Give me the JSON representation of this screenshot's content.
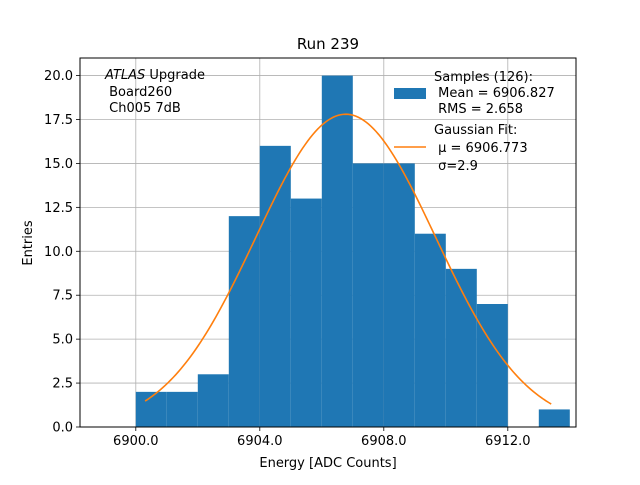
{
  "chart_data": {
    "type": "bar",
    "title": "Run 239",
    "xlabel": "Energy [ADC Counts]",
    "ylabel": "Entries",
    "xlim": [
      6898.2,
      6914.2
    ],
    "ylim": [
      0,
      21.0
    ],
    "grid": true,
    "x_ticks": [
      6900.0,
      6904.0,
      6908.0,
      6912.0
    ],
    "x_tick_labels": [
      "6900.0",
      "6904.0",
      "6908.0",
      "6912.0"
    ],
    "y_ticks": [
      0.0,
      2.5,
      5.0,
      7.5,
      10.0,
      12.5,
      15.0,
      17.5,
      20.0
    ],
    "y_tick_labels": [
      "0.0",
      "2.5",
      "5.0",
      "7.5",
      "10.0",
      "12.5",
      "15.0",
      "17.5",
      "20.0"
    ],
    "bin_width": 1,
    "histogram": {
      "name": "Samples (126):",
      "color": "#1f77b4",
      "bins": [
        {
          "x0": 6900,
          "count": 2
        },
        {
          "x0": 6901,
          "count": 2
        },
        {
          "x0": 6902,
          "count": 3
        },
        {
          "x0": 6903,
          "count": 12
        },
        {
          "x0": 6904,
          "count": 16
        },
        {
          "x0": 6905,
          "count": 13
        },
        {
          "x0": 6906,
          "count": 20
        },
        {
          "x0": 6907,
          "count": 15
        },
        {
          "x0": 6908,
          "count": 15
        },
        {
          "x0": 6909,
          "count": 11
        },
        {
          "x0": 6910,
          "count": 9
        },
        {
          "x0": 6911,
          "count": 7
        },
        {
          "x0": 6913,
          "count": 1
        }
      ]
    },
    "fit": {
      "name": "Gaussian Fit:",
      "color": "#ff7f0e",
      "mu": 6906.773,
      "sigma": 2.9,
      "amplitude": 17.8,
      "x_range": [
        6900.3,
        6913.4
      ]
    },
    "legend": {
      "position": "top-right",
      "hist_lines": [
        "Samples (126):",
        " Mean = 6906.827",
        " RMS = 2.658"
      ],
      "fit_lines": [
        "Gaussian Fit:",
        " μ = 6906.773",
        " σ=2.9"
      ]
    },
    "annotation": {
      "position": "top-left",
      "line1_italic": "ATLAS",
      "line1_rest": " Upgrade",
      "line2": " Board260",
      "line3": " Ch005 7dB"
    }
  }
}
